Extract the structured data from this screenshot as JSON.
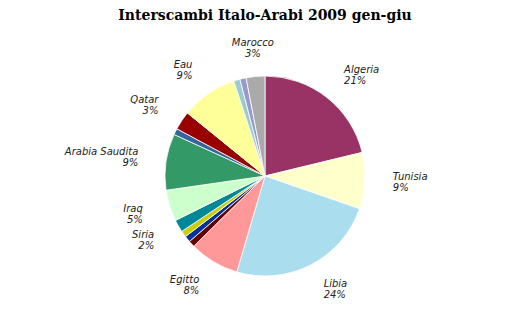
{
  "chart_data": {
    "type": "pie",
    "title": "Interscambi Italo-Arabi 2009 gen-giu",
    "categories": [
      "Algeria",
      "Tunisia",
      "Libia",
      "Egitto",
      null,
      null,
      null,
      "Siria",
      "Iraq",
      "Arabia Saudita",
      null,
      "Qatar",
      "Eau",
      null,
      null,
      "Marocco"
    ],
    "values": [
      21,
      9,
      24,
      8,
      1,
      1,
      1,
      2,
      5,
      9,
      1,
      3,
      9,
      1,
      1,
      3
    ],
    "value_labels": [
      "21%",
      "9%",
      "24%",
      "8%",
      null,
      null,
      null,
      "2%",
      "5%",
      "9%",
      null,
      "3%",
      "9%",
      null,
      null,
      "3%"
    ],
    "colors": [
      "#993366",
      "#FFFFCC",
      "#AADDEE",
      "#FF9999",
      "#660000",
      "#003399",
      "#CCCC00",
      "#008899",
      "#CCFFCC",
      "#339966",
      "#336699",
      "#990000",
      "#FFFF99",
      "#99CCCC",
      "#9999CC",
      "#AAAAAA"
    ],
    "data_labels": true
  }
}
